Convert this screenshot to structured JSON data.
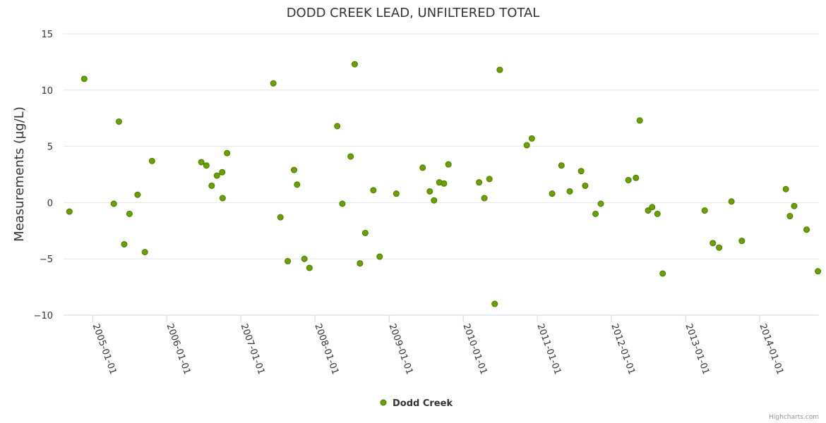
{
  "chart_data": {
    "type": "scatter",
    "title": "DODD CREEK LEAD, UNFILTERED TOTAL",
    "xlabel": "",
    "ylabel": "Measurements (µg/L)",
    "ylim": [
      -10,
      15
    ],
    "y_ticks": [
      "15",
      "10",
      "5",
      "0",
      "−5",
      "−10"
    ],
    "x_ticks": [
      "2005-01-01",
      "2006-01-01",
      "2007-01-01",
      "2008-01-01",
      "2009-01-01",
      "2010-01-01",
      "2011-01-01",
      "2012-01-01",
      "2013-01-01",
      "2014-01-01"
    ],
    "xlim": [
      "2004-08-10",
      "2014-10-20"
    ],
    "grid": true,
    "legend": "bottom-center",
    "series": [
      {
        "name": "Dodd Creek",
        "color": "#6aa000",
        "marker_edge": "#4a7a00",
        "points": [
          [
            "2004-09-08",
            -0.8
          ],
          [
            "2004-11-20",
            11.0
          ],
          [
            "2005-04-15",
            -0.1
          ],
          [
            "2005-05-10",
            7.2
          ],
          [
            "2005-06-05",
            -3.7
          ],
          [
            "2005-07-01",
            -1.0
          ],
          [
            "2005-08-10",
            0.7
          ],
          [
            "2005-09-15",
            -4.4
          ],
          [
            "2005-10-20",
            3.7
          ],
          [
            "2006-06-20",
            3.6
          ],
          [
            "2006-07-15",
            3.3
          ],
          [
            "2006-08-10",
            1.5
          ],
          [
            "2006-09-05",
            2.4
          ],
          [
            "2006-10-01",
            2.7
          ],
          [
            "2006-10-03",
            0.4
          ],
          [
            "2006-10-25",
            4.4
          ],
          [
            "2007-06-10",
            10.6
          ],
          [
            "2007-07-15",
            -1.3
          ],
          [
            "2007-08-20",
            -5.2
          ],
          [
            "2007-09-20",
            2.9
          ],
          [
            "2007-10-05",
            1.6
          ],
          [
            "2007-11-10",
            -5.0
          ],
          [
            "2007-12-05",
            -5.8
          ],
          [
            "2008-04-20",
            6.8
          ],
          [
            "2008-05-15",
            -0.1
          ],
          [
            "2008-06-25",
            4.1
          ],
          [
            "2008-07-15",
            12.3
          ],
          [
            "2008-08-10",
            -5.4
          ],
          [
            "2008-09-05",
            -2.7
          ],
          [
            "2008-10-15",
            1.1
          ],
          [
            "2008-11-15",
            -4.8
          ],
          [
            "2009-02-05",
            0.8
          ],
          [
            "2009-06-15",
            3.1
          ],
          [
            "2009-07-20",
            1.0
          ],
          [
            "2009-08-10",
            0.2
          ],
          [
            "2009-09-05",
            1.8
          ],
          [
            "2009-09-28",
            1.7
          ],
          [
            "2009-10-20",
            3.4
          ],
          [
            "2010-03-20",
            1.8
          ],
          [
            "2010-04-15",
            0.4
          ],
          [
            "2010-05-10",
            2.1
          ],
          [
            "2010-06-05",
            -9.0
          ],
          [
            "2010-06-30",
            11.8
          ],
          [
            "2010-11-10",
            5.1
          ],
          [
            "2010-12-05",
            5.7
          ],
          [
            "2011-03-15",
            0.8
          ],
          [
            "2011-04-30",
            3.3
          ],
          [
            "2011-06-10",
            1.0
          ],
          [
            "2011-08-05",
            2.8
          ],
          [
            "2011-08-25",
            1.5
          ],
          [
            "2011-10-15",
            -1.0
          ],
          [
            "2011-11-10",
            -0.1
          ],
          [
            "2012-03-25",
            2.0
          ],
          [
            "2012-05-01",
            2.2
          ],
          [
            "2012-05-20",
            7.3
          ],
          [
            "2012-06-30",
            -0.7
          ],
          [
            "2012-07-20",
            -0.4
          ],
          [
            "2012-08-15",
            -1.0
          ],
          [
            "2012-09-10",
            -6.3
          ],
          [
            "2013-04-05",
            -0.7
          ],
          [
            "2013-05-15",
            -3.6
          ],
          [
            "2013-06-15",
            -4.0
          ],
          [
            "2013-08-15",
            0.1
          ],
          [
            "2013-10-05",
            -3.4
          ],
          [
            "2014-05-10",
            1.2
          ],
          [
            "2014-05-30",
            -1.2
          ],
          [
            "2014-06-20",
            -0.3
          ],
          [
            "2014-08-20",
            -2.4
          ],
          [
            "2014-10-15",
            -6.1
          ]
        ]
      }
    ]
  },
  "credits": "Highcharts.com"
}
